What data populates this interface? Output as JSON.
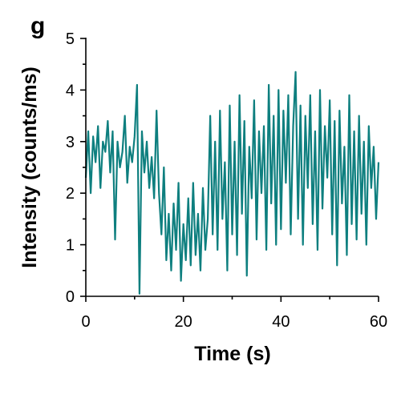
{
  "chart_data": {
    "type": "line",
    "title": "g",
    "xlabel": "Time (s)",
    "ylabel": "Intensity (counts/ms)",
    "color": "#0e7f7f",
    "xlim": [
      0,
      60
    ],
    "xticks": [
      0,
      20,
      40,
      60
    ],
    "ylim": [
      0,
      5
    ],
    "yticks": [
      0,
      1,
      2,
      3,
      4,
      5
    ],
    "x": [
      0,
      0.5,
      1,
      1.5,
      2,
      2.5,
      3,
      3.5,
      4,
      4.5,
      5,
      5.5,
      6,
      6.5,
      7,
      7.5,
      8,
      8.5,
      9,
      9.5,
      10,
      10.5,
      11,
      11.5,
      12,
      12.5,
      13,
      13.5,
      14,
      14.5,
      15,
      15.5,
      16,
      16.5,
      17,
      17.5,
      18,
      18.5,
      19,
      19.5,
      20,
      20.5,
      21,
      21.5,
      22,
      22.5,
      23,
      23.5,
      24,
      24.5,
      25,
      25.5,
      26,
      26.5,
      27,
      27.5,
      28,
      28.5,
      29,
      29.5,
      30,
      30.5,
      31,
      31.5,
      32,
      32.5,
      33,
      33.5,
      34,
      34.5,
      35,
      35.5,
      36,
      36.5,
      37,
      37.5,
      38,
      38.5,
      39,
      39.5,
      40,
      40.5,
      41,
      41.5,
      42,
      42.5,
      43,
      43.5,
      44,
      44.5,
      45,
      45.5,
      46,
      46.5,
      47,
      47.5,
      48,
      48.5,
      49,
      49.5,
      50,
      50.5,
      51,
      51.5,
      52,
      52.5,
      53,
      53.5,
      54,
      54.5,
      55,
      55.5,
      56,
      56.5,
      57,
      57.5,
      58,
      58.5,
      59,
      59.5,
      60
    ],
    "values": [
      2.3,
      3.2,
      2.0,
      3.1,
      2.6,
      3.3,
      2.1,
      3.0,
      2.8,
      3.4,
      2.4,
      3.2,
      1.1,
      3.0,
      2.5,
      2.8,
      3.5,
      2.2,
      2.9,
      2.6,
      3.1,
      4.1,
      0.05,
      3.2,
      2.4,
      3.0,
      2.1,
      2.7,
      1.9,
      3.6,
      2.0,
      1.2,
      2.5,
      0.7,
      1.6,
      0.5,
      1.8,
      0.9,
      2.2,
      0.3,
      1.4,
      0.7,
      1.9,
      0.6,
      2.2,
      0.8,
      1.6,
      0.5,
      2.1,
      0.9,
      1.5,
      3.5,
      1.2,
      3.0,
      0.9,
      3.6,
      1.5,
      2.6,
      0.5,
      3.7,
      1.2,
      3.0,
      0.8,
      3.9,
      1.6,
      3.4,
      0.4,
      2.9,
      1.9,
      3.8,
      1.1,
      3.2,
      2.0,
      3.3,
      0.9,
      4.1,
      1.8,
      3.5,
      1.0,
      4.0,
      1.3,
      3.6,
      2.2,
      3.9,
      1.2,
      3.3,
      4.35,
      1.5,
      3.7,
      1.0,
      3.5,
      2.1,
      3.9,
      1.4,
      3.2,
      0.9,
      4.0,
      1.7,
      3.3,
      2.3,
      3.8,
      1.2,
      3.4,
      0.6,
      3.6,
      1.8,
      2.9,
      0.8,
      3.9,
      1.4,
      3.2,
      1.1,
      3.5,
      1.6,
      3.0,
      1.0,
      3.3,
      2.1,
      2.9,
      1.5,
      2.6
    ]
  }
}
